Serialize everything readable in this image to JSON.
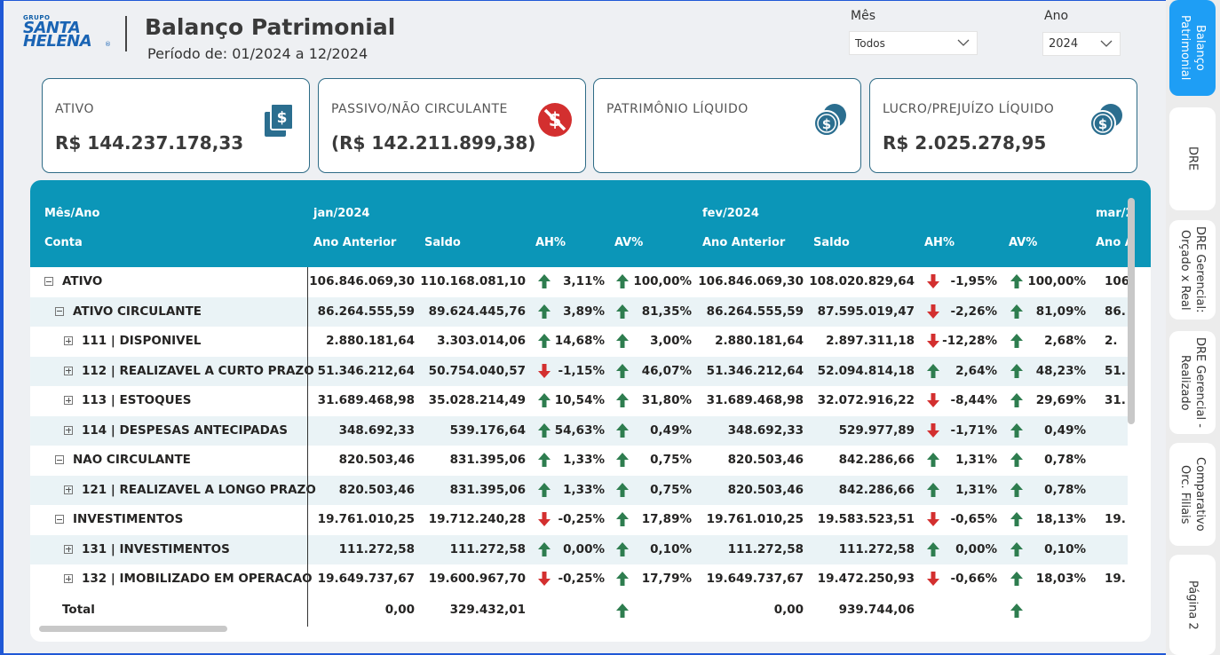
{
  "logo": {
    "group": "GRUPO",
    "line1": "SANTA",
    "line2": "HELENA",
    "registered": "®"
  },
  "header": {
    "title": "Balanço Patrimonial",
    "period": "Período de: 01/2024 a 12/2024"
  },
  "filters": {
    "month": {
      "label": "Mês",
      "value": "Todos"
    },
    "year": {
      "label": "Ano",
      "value": "2024"
    }
  },
  "cards": [
    {
      "label": "ATIVO",
      "value": "R$ 144.237.178,33",
      "icon": "document-dollar-icon"
    },
    {
      "label": "PASSIVO/NÃO CIRCULANTE",
      "value": "(R$ 142.211.899,38)",
      "icon": "no-money-icon"
    },
    {
      "label": "PATRIMÔNIO LÍQUIDO",
      "value": "",
      "icon": "coins-icon"
    },
    {
      "label": "LUCRO/PREJUÍZO LÍQUIDO",
      "value": "R$ 2.025.278,95",
      "icon": "coins-icon"
    }
  ],
  "table": {
    "header_row1": {
      "label": "Mês/Ano",
      "month1": "jan/2024",
      "month2": "fev/2024",
      "month3": "mar/2"
    },
    "header_row2": {
      "label": "Conta",
      "c1": "Ano Anterior",
      "c2": "Saldo",
      "c3": "AH%",
      "c4": "AV%",
      "c5": "Ano Anterior",
      "c6": "Saldo",
      "c7": "AH%",
      "c8": "AV%",
      "c9": "Ano A"
    },
    "rows": [
      {
        "label": "ATIVO",
        "expand": "minus",
        "indent": 0,
        "jan": [
          "106.846.069,30",
          "110.168.081,10",
          "3,11%",
          "100,00%"
        ],
        "jan_dirs": [
          "up",
          "up"
        ],
        "fev": [
          "106.846.069,30",
          "108.020.829,64",
          "-1,95%",
          "100,00%"
        ],
        "fev_dirs": [
          "down",
          "up"
        ],
        "mar": "106."
      },
      {
        "label": "ATIVO CIRCULANTE",
        "expand": "minus",
        "indent": 1,
        "jan": [
          "86.264.555,59",
          "89.624.445,76",
          "3,89%",
          "81,35%"
        ],
        "jan_dirs": [
          "up",
          "up"
        ],
        "fev": [
          "86.264.555,59",
          "87.595.019,47",
          "-2,26%",
          "81,09%"
        ],
        "fev_dirs": [
          "down",
          "up"
        ],
        "mar": "86."
      },
      {
        "label": "111 | DISPONIVEL",
        "expand": "plus",
        "indent": 2,
        "jan": [
          "2.880.181,64",
          "3.303.014,06",
          "14,68%",
          "3,00%"
        ],
        "jan_dirs": [
          "up",
          "up"
        ],
        "fev": [
          "2.880.181,64",
          "2.897.311,18",
          "-12,28%",
          "2,68%"
        ],
        "fev_dirs": [
          "down",
          "up"
        ],
        "mar": "2."
      },
      {
        "label": "112 | REALIZAVEL A CURTO PRAZO",
        "expand": "plus",
        "indent": 2,
        "jan": [
          "51.346.212,64",
          "50.754.040,57",
          "-1,15%",
          "46,07%"
        ],
        "jan_dirs": [
          "down",
          "up"
        ],
        "fev": [
          "51.346.212,64",
          "52.094.814,18",
          "2,64%",
          "48,23%"
        ],
        "fev_dirs": [
          "up",
          "up"
        ],
        "mar": "51."
      },
      {
        "label": "113 | ESTOQUES",
        "expand": "plus",
        "indent": 2,
        "jan": [
          "31.689.468,98",
          "35.028.214,49",
          "10,54%",
          "31,80%"
        ],
        "jan_dirs": [
          "up",
          "up"
        ],
        "fev": [
          "31.689.468,98",
          "32.072.916,22",
          "-8,44%",
          "29,69%"
        ],
        "fev_dirs": [
          "down",
          "up"
        ],
        "mar": "31."
      },
      {
        "label": "114 | DESPESAS ANTECIPADAS",
        "expand": "plus",
        "indent": 2,
        "jan": [
          "348.692,33",
          "539.176,64",
          "54,63%",
          "0,49%"
        ],
        "jan_dirs": [
          "up",
          "up"
        ],
        "fev": [
          "348.692,33",
          "529.977,89",
          "-1,71%",
          "0,49%"
        ],
        "fev_dirs": [
          "down",
          "up"
        ],
        "mar": ""
      },
      {
        "label": "NAO CIRCULANTE",
        "expand": "minus",
        "indent": 1,
        "jan": [
          "820.503,46",
          "831.395,06",
          "1,33%",
          "0,75%"
        ],
        "jan_dirs": [
          "up",
          "up"
        ],
        "fev": [
          "820.503,46",
          "842.286,66",
          "1,31%",
          "0,78%"
        ],
        "fev_dirs": [
          "up",
          "up"
        ],
        "mar": ""
      },
      {
        "label": "121 | REALIZAVEL A LONGO PRAZO",
        "expand": "plus",
        "indent": 2,
        "jan": [
          "820.503,46",
          "831.395,06",
          "1,33%",
          "0,75%"
        ],
        "jan_dirs": [
          "up",
          "up"
        ],
        "fev": [
          "820.503,46",
          "842.286,66",
          "1,31%",
          "0,78%"
        ],
        "fev_dirs": [
          "up",
          "up"
        ],
        "mar": ""
      },
      {
        "label": "INVESTIMENTOS",
        "expand": "minus",
        "indent": 1,
        "jan": [
          "19.761.010,25",
          "19.712.240,28",
          "-0,25%",
          "17,89%"
        ],
        "jan_dirs": [
          "down",
          "up"
        ],
        "fev": [
          "19.761.010,25",
          "19.583.523,51",
          "-0,65%",
          "18,13%"
        ],
        "fev_dirs": [
          "down",
          "up"
        ],
        "mar": "19."
      },
      {
        "label": "131 | INVESTIMENTOS",
        "expand": "plus",
        "indent": 2,
        "jan": [
          "111.272,58",
          "111.272,58",
          "0,00%",
          "0,10%"
        ],
        "jan_dirs": [
          "up",
          "up"
        ],
        "fev": [
          "111.272,58",
          "111.272,58",
          "0,00%",
          "0,10%"
        ],
        "fev_dirs": [
          "up",
          "up"
        ],
        "mar": ""
      },
      {
        "label": "132 | IMOBILIZADO EM OPERACAO",
        "expand": "plus",
        "indent": 2,
        "jan": [
          "19.649.737,67",
          "19.600.967,70",
          "-0,25%",
          "17,79%"
        ],
        "jan_dirs": [
          "down",
          "up"
        ],
        "fev": [
          "19.649.737,67",
          "19.472.250,93",
          "-0,66%",
          "18,03%"
        ],
        "fev_dirs": [
          "down",
          "up"
        ],
        "mar": "19."
      }
    ],
    "total": {
      "label": "Total",
      "jan": [
        "0,00",
        "329.432,01"
      ],
      "fev": [
        "0,00",
        "939.744,06"
      ]
    }
  },
  "nav_tabs": [
    {
      "label": "Balanço\nPatrimonial",
      "active": true
    },
    {
      "label": "DRE",
      "active": false
    },
    {
      "label": "DRE Gerencial:\nOrçado x Real",
      "active": false
    },
    {
      "label": "DRE Gerencial -\nRealizado",
      "active": false
    },
    {
      "label": "Comparativo\nOrc. Filiais",
      "active": false
    },
    {
      "label": "Página 2",
      "active": false
    }
  ],
  "colors": {
    "header_teal": "#0b96b8",
    "arrow_up": "#2e7d4f",
    "arrow_down": "#d32f2f",
    "nav_active": "#1e9ef5"
  }
}
